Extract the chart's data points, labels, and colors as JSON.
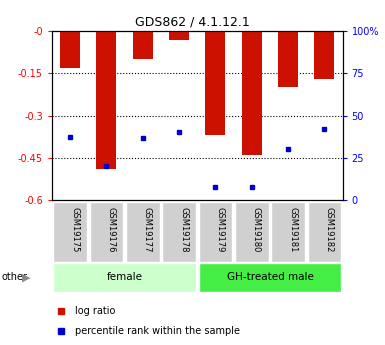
{
  "title": "GDS862 / 4.1.12.1",
  "samples": [
    "GSM19175",
    "GSM19176",
    "GSM19177",
    "GSM19178",
    "GSM19179",
    "GSM19180",
    "GSM19181",
    "GSM19182"
  ],
  "log_ratio": [
    -0.13,
    -0.49,
    -0.1,
    -0.03,
    -0.37,
    -0.44,
    -0.2,
    -0.17
  ],
  "percentile_rank": [
    0.375,
    0.2,
    0.37,
    0.4,
    0.08,
    0.08,
    0.3,
    0.42
  ],
  "groups": [
    {
      "label": "female",
      "start": 0,
      "end": 3,
      "color": "#ccffcc"
    },
    {
      "label": "GH-treated male",
      "start": 4,
      "end": 7,
      "color": "#44ee44"
    }
  ],
  "bar_color": "#cc1100",
  "marker_color": "#0000cc",
  "ylim_left": [
    -0.6,
    0.0
  ],
  "yticks_left": [
    0.0,
    -0.15,
    -0.3,
    -0.45,
    -0.6
  ],
  "ytick_labels_left": [
    "-0",
    "-0.15",
    "-0.3",
    "-0.45",
    "-0.6"
  ],
  "ytick_labels_right": [
    "0",
    "25",
    "50",
    "75",
    "100%"
  ],
  "bar_width": 0.55
}
